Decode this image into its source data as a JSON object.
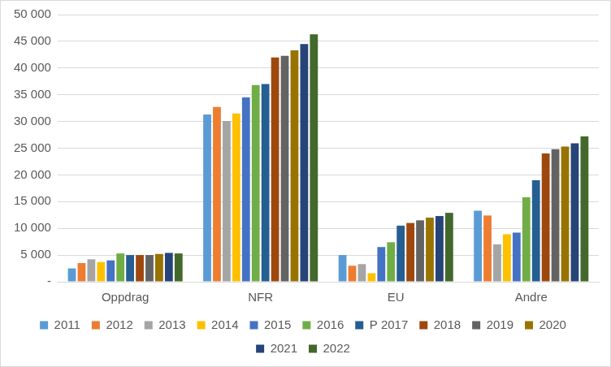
{
  "chart_data": {
    "type": "bar",
    "categories": [
      "Oppdrag",
      "NFR",
      "EU",
      "Andre"
    ],
    "series": [
      {
        "name": "2011",
        "color": "#5b9bd5",
        "values": [
          2500,
          31300,
          5000,
          13300
        ]
      },
      {
        "name": "2012",
        "color": "#ed7d31",
        "values": [
          3500,
          32700,
          3000,
          12400
        ]
      },
      {
        "name": "2013",
        "color": "#a5a5a5",
        "values": [
          4200,
          30100,
          3300,
          7000
        ]
      },
      {
        "name": "2014",
        "color": "#ffc000",
        "values": [
          3700,
          31500,
          1600,
          8900
        ]
      },
      {
        "name": "2015",
        "color": "#4472c4",
        "values": [
          4000,
          34500,
          6500,
          9200
        ]
      },
      {
        "name": "2016",
        "color": "#70ad47",
        "values": [
          5300,
          36800,
          7400,
          15800
        ]
      },
      {
        "name": "P 2017",
        "color": "#255e91",
        "values": [
          5000,
          37000,
          10500,
          19000
        ]
      },
      {
        "name": "2018",
        "color": "#9e480e",
        "values": [
          5000,
          42000,
          11000,
          24000
        ]
      },
      {
        "name": "2019",
        "color": "#636363",
        "values": [
          5000,
          42300,
          11500,
          24800
        ]
      },
      {
        "name": "2020",
        "color": "#997300",
        "values": [
          5200,
          43300,
          12000,
          25300
        ]
      },
      {
        "name": "2021",
        "color": "#264478",
        "values": [
          5400,
          44500,
          12300,
          25900
        ]
      },
      {
        "name": "2022",
        "color": "#43682b",
        "values": [
          5300,
          46300,
          12900,
          27200
        ]
      }
    ],
    "ylim": [
      0,
      50000
    ],
    "yticks": [
      {
        "value": 0,
        "label": "-"
      },
      {
        "value": 5000,
        "label": "5 000"
      },
      {
        "value": 10000,
        "label": "10 000"
      },
      {
        "value": 15000,
        "label": "15 000"
      },
      {
        "value": 20000,
        "label": "20 000"
      },
      {
        "value": 25000,
        "label": "25 000"
      },
      {
        "value": 30000,
        "label": "30 000"
      },
      {
        "value": 35000,
        "label": "35 000"
      },
      {
        "value": 40000,
        "label": "40 000"
      },
      {
        "value": 45000,
        "label": "45 000"
      },
      {
        "value": 50000,
        "label": "50 000"
      }
    ],
    "grid": true,
    "legend": "bottom"
  }
}
